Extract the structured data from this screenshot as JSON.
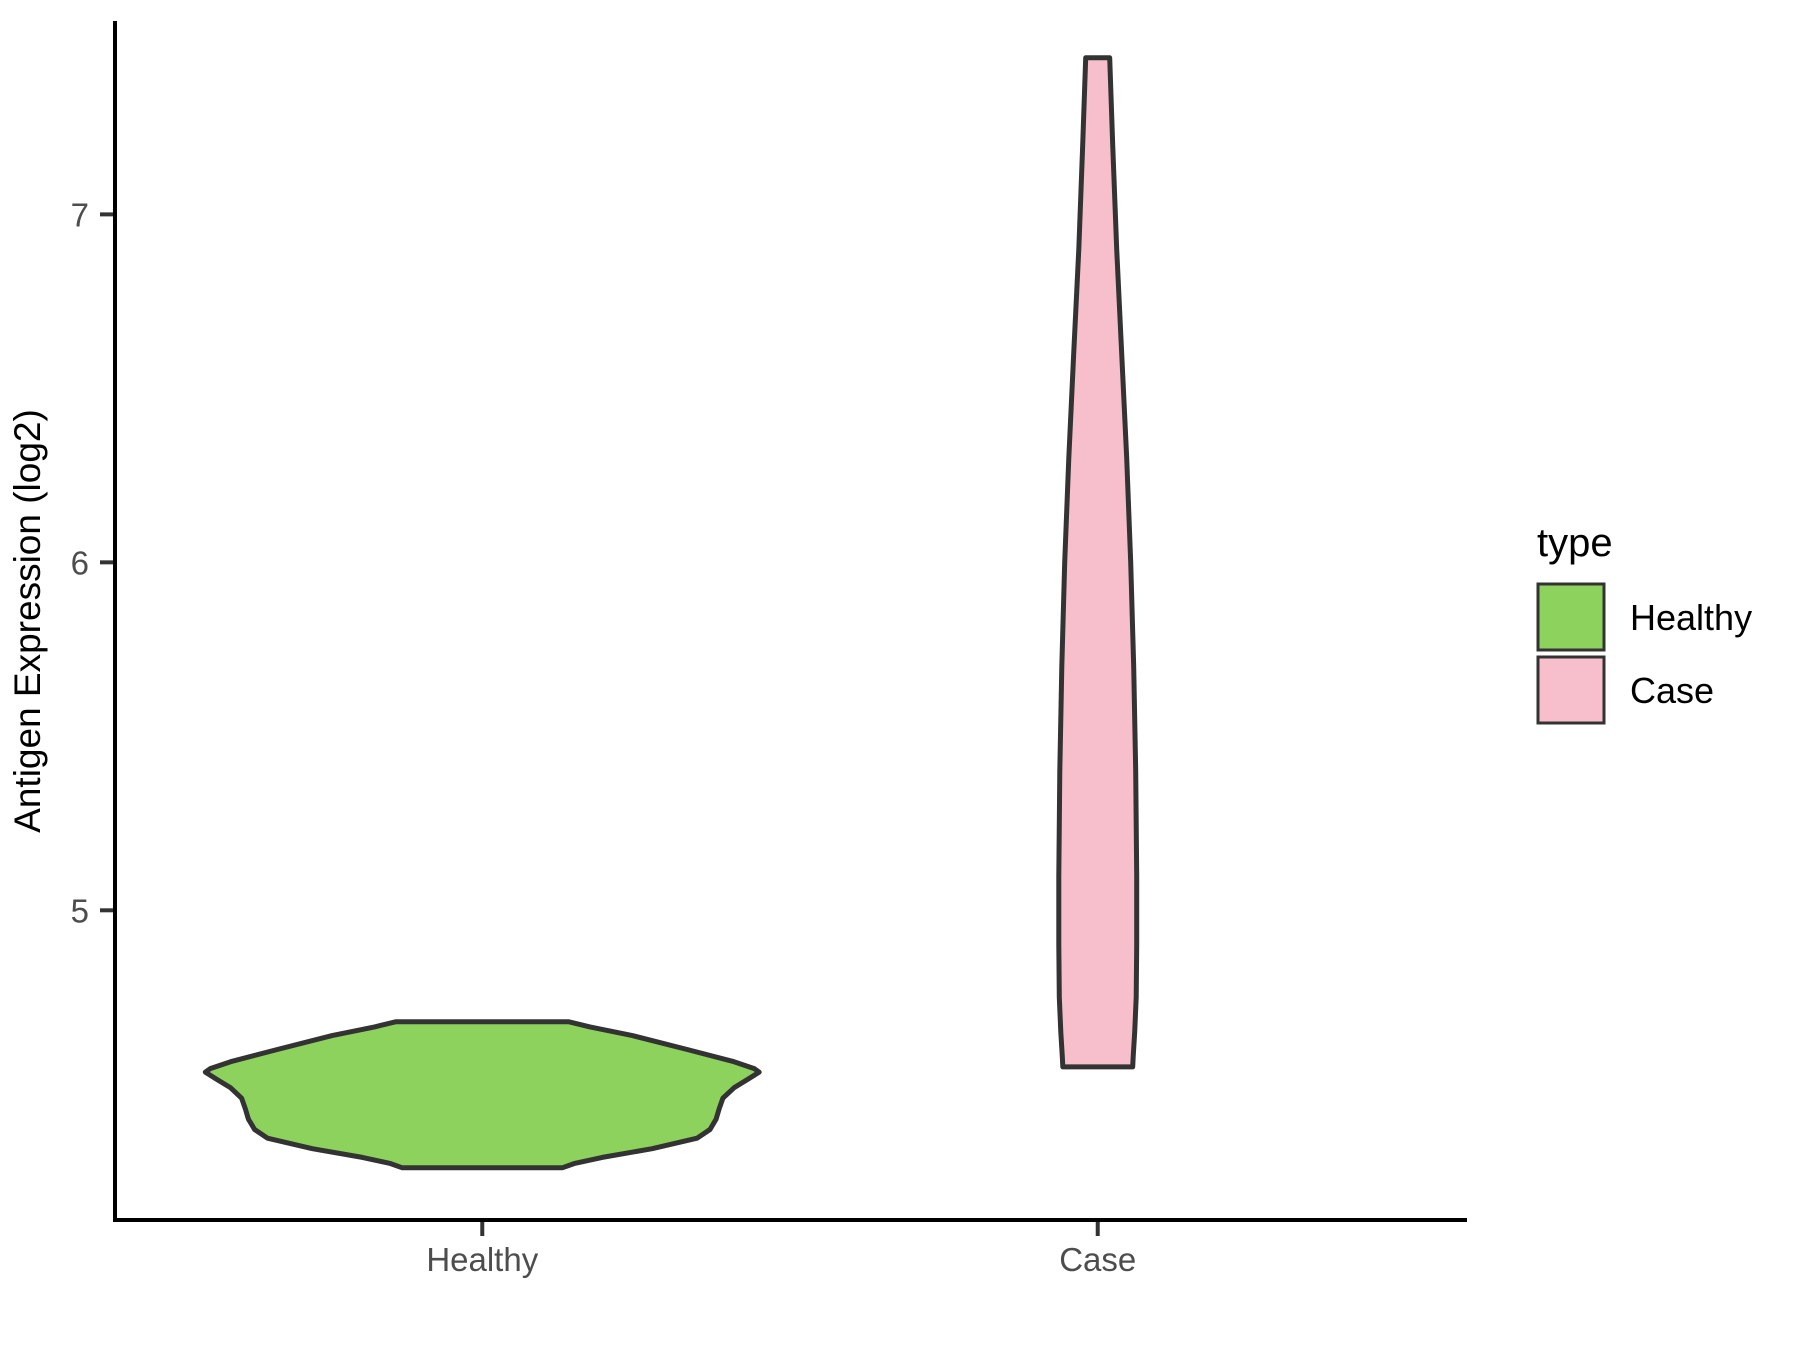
{
  "chart_data": {
    "type": "violin",
    "title": "",
    "xlabel": "",
    "ylabel": "Antigen Expression (log2)",
    "categories": [
      "Healthy",
      "Case"
    ],
    "yticks": [
      7,
      6,
      5
    ],
    "ylim": [
      4.11,
      7.55
    ],
    "grid": false,
    "legend": {
      "title": "type",
      "position": "right",
      "entries": [
        "Healthy",
        "Case"
      ]
    },
    "style": {
      "outline_color": "#333333",
      "axis_color": "#000000",
      "tick_label_color": "#4d4d4d",
      "background": "#ffffff"
    },
    "series": [
      {
        "name": "Healthy",
        "color": "#8cd25c",
        "range": [
          4.26,
          4.68
        ],
        "peak_value": 4.54,
        "max_halfwidth_units": 0.45,
        "profile": [
          [
            4.68,
            0.14
          ],
          [
            4.665,
            0.175
          ],
          [
            4.64,
            0.244
          ],
          [
            4.6,
            0.333
          ],
          [
            4.565,
            0.409
          ],
          [
            4.545,
            0.442
          ],
          [
            4.535,
            0.45
          ],
          [
            4.515,
            0.432
          ],
          [
            4.49,
            0.409
          ],
          [
            4.46,
            0.391
          ],
          [
            4.43,
            0.385
          ],
          [
            4.4,
            0.38
          ],
          [
            4.37,
            0.37
          ],
          [
            4.345,
            0.349
          ],
          [
            4.315,
            0.276
          ],
          [
            4.29,
            0.195
          ],
          [
            4.272,
            0.149
          ],
          [
            4.26,
            0.13
          ]
        ]
      },
      {
        "name": "Case",
        "color": "#f7bfcc",
        "range": [
          4.55,
          7.45
        ],
        "peak_value": 5.0,
        "max_halfwidth_units": 0.0633,
        "profile": [
          [
            7.45,
            0.0195
          ],
          [
            7.2,
            0.0244
          ],
          [
            6.9,
            0.0308
          ],
          [
            6.6,
            0.039
          ],
          [
            6.3,
            0.047
          ],
          [
            6.0,
            0.0536
          ],
          [
            5.7,
            0.0584
          ],
          [
            5.4,
            0.0617
          ],
          [
            5.1,
            0.0633
          ],
          [
            4.9,
            0.0633
          ],
          [
            4.75,
            0.0625
          ],
          [
            4.65,
            0.06
          ],
          [
            4.58,
            0.0576
          ],
          [
            4.55,
            0.0568
          ]
        ]
      }
    ]
  }
}
